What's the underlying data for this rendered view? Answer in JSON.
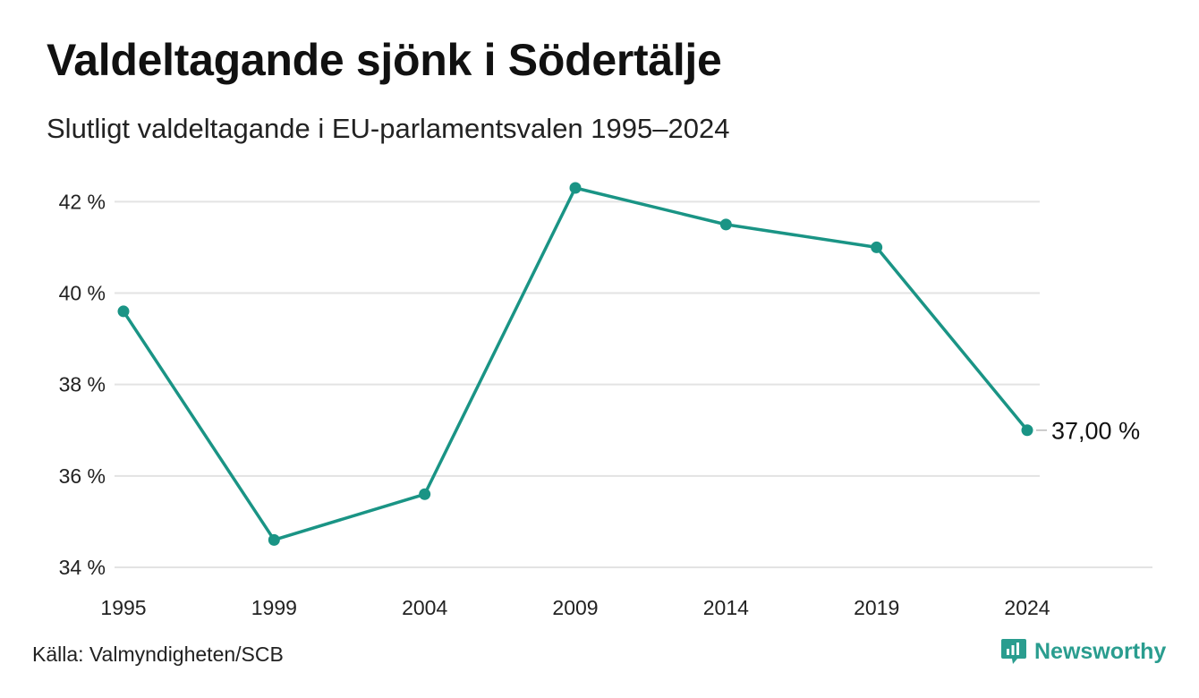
{
  "header": {
    "title": "Valdeltagande sjönk i Södertälje",
    "subtitle": "Slutligt valdeltagande i EU-parlamentsvalen 1995–2024"
  },
  "footer": {
    "source": "Källa: Valmyndigheten/SCB",
    "brand": "Newsworthy",
    "brand_icon": "newsworthy-logo-icon"
  },
  "colors": {
    "line": "#1a9485",
    "grid": "#e3e3e3",
    "brand": "#2a9d8f"
  },
  "chart_data": {
    "type": "line",
    "title": "Valdeltagande sjönk i Södertälje",
    "subtitle": "Slutligt valdeltagande i EU-parlamentsvalen 1995–2024",
    "categories": [
      "1995",
      "1999",
      "2004",
      "2009",
      "2014",
      "2019",
      "2024"
    ],
    "series": [
      {
        "values": [
          39.6,
          34.6,
          35.6,
          42.3,
          41.5,
          41.0,
          37.0
        ]
      }
    ],
    "yticks": [
      34,
      36,
      38,
      40,
      42
    ],
    "ytick_labels": [
      "34 %",
      "36 %",
      "38 %",
      "40 %",
      "42 %"
    ],
    "ylim": [
      34,
      42.3
    ],
    "grid": true,
    "end_label": "37,00 %",
    "xlabel": "",
    "ylabel": ""
  }
}
